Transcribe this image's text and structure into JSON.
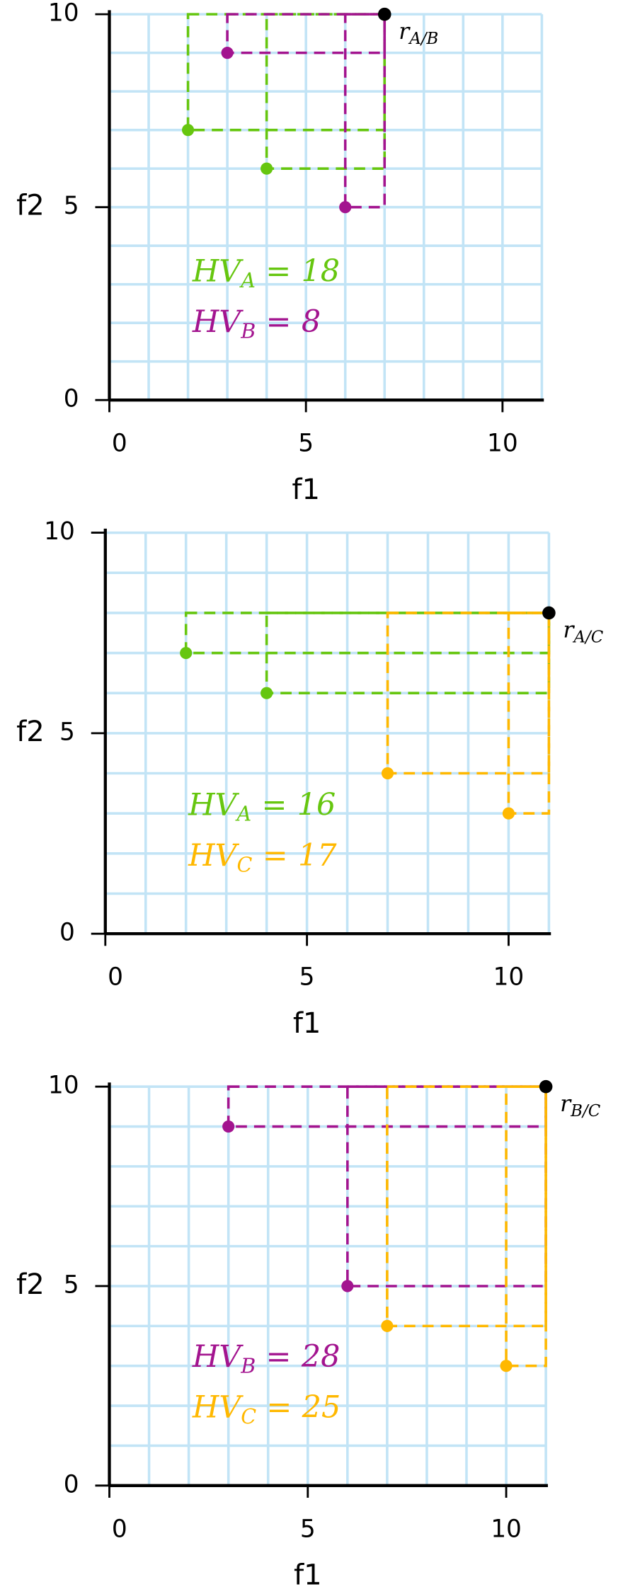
{
  "chart_data": [
    {
      "type": "scatter",
      "x_label": "f1",
      "y_label": "f2",
      "xlim": [
        0,
        11
      ],
      "ylim": [
        0,
        10
      ],
      "xticks": [
        0,
        5,
        10
      ],
      "yticks": [
        0,
        5,
        10
      ],
      "grid": true,
      "grid_step": 1,
      "hv_label": "HV",
      "hv_relation": "=",
      "reference": {
        "label": "r",
        "sub": "A/B",
        "x": 7,
        "y": 10,
        "color": "#000000"
      },
      "series": [
        {
          "name": "A",
          "color": "#66c60f",
          "x": [
            2,
            4
          ],
          "values": [
            7,
            6
          ],
          "hv": 18
        },
        {
          "name": "B",
          "color": "#a3148f",
          "x": [
            3,
            6
          ],
          "values": [
            9,
            5
          ],
          "hv": 8
        }
      ]
    },
    {
      "type": "scatter",
      "x_label": "f1",
      "y_label": "f2",
      "xlim": [
        0,
        11
      ],
      "ylim": [
        0,
        10
      ],
      "xticks": [
        0,
        5,
        10
      ],
      "yticks": [
        0,
        5,
        10
      ],
      "grid": true,
      "grid_step": 1,
      "hv_label": "HV",
      "hv_relation": "=",
      "reference": {
        "label": "r",
        "sub": "A/C",
        "x": 11,
        "y": 8,
        "color": "#000000"
      },
      "series": [
        {
          "name": "A",
          "color": "#66c60f",
          "x": [
            2,
            4
          ],
          "values": [
            7,
            6
          ],
          "hv": 16
        },
        {
          "name": "C",
          "color": "#ffb800",
          "x": [
            7,
            10
          ],
          "values": [
            4,
            3
          ],
          "hv": 17
        }
      ]
    },
    {
      "type": "scatter",
      "x_label": "f1",
      "y_label": "f2",
      "xlim": [
        0,
        11
      ],
      "ylim": [
        0,
        10
      ],
      "xticks": [
        0,
        5,
        10
      ],
      "yticks": [
        0,
        5,
        10
      ],
      "grid": true,
      "grid_step": 1,
      "hv_label": "HV",
      "hv_relation": "=",
      "reference": {
        "label": "r",
        "sub": "B/C",
        "x": 11,
        "y": 10,
        "color": "#000000"
      },
      "series": [
        {
          "name": "B",
          "color": "#a3148f",
          "x": [
            3,
            6
          ],
          "values": [
            9,
            5
          ],
          "hv": 28
        },
        {
          "name": "C",
          "color": "#ffb800",
          "x": [
            7,
            10
          ],
          "values": [
            4,
            3
          ],
          "hv": 25
        }
      ]
    }
  ]
}
